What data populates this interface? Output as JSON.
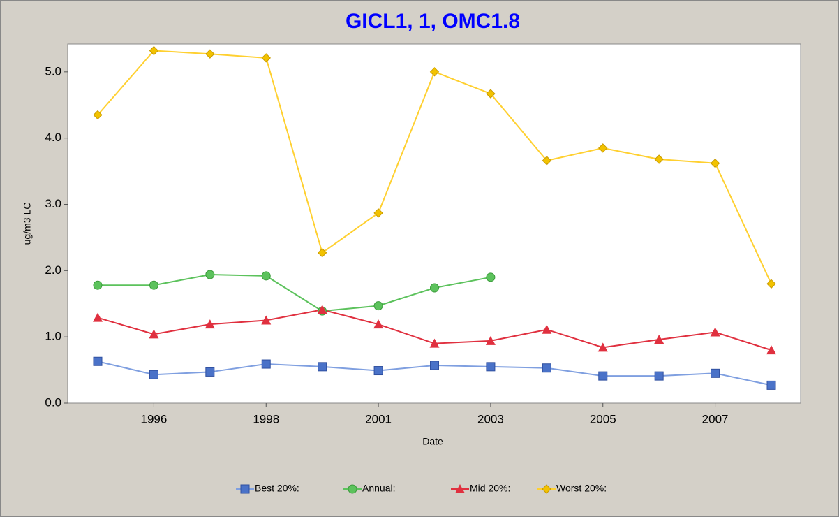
{
  "chart_data": {
    "type": "line",
    "title": "GICL1, 1, OMC1.8",
    "xlabel": "Date",
    "ylabel": "ug/m3 LC",
    "categories": [
      null,
      "1996",
      null,
      "1998",
      null,
      "2001",
      null,
      "2003",
      null,
      "2005",
      null,
      "2007",
      null
    ],
    "ylim": [
      0,
      5.42
    ],
    "yticks": [
      {
        "value": 0,
        "label": "0.0"
      },
      {
        "value": 1,
        "label": "1.0"
      },
      {
        "value": 2,
        "label": "2.0"
      },
      {
        "value": 3,
        "label": "3.0"
      },
      {
        "value": 4,
        "label": "4.0"
      },
      {
        "value": 5,
        "label": "5.0"
      }
    ],
    "series": [
      {
        "name": "Best 20%:",
        "color": "#4a72c8",
        "values": [
          0.63,
          0.43,
          0.47,
          0.59,
          0.55,
          0.49,
          0.57,
          0.55,
          0.53,
          0.41,
          0.41,
          0.45,
          0.27
        ]
      },
      {
        "name": "Annual:",
        "color": "#5cc25c",
        "values": [
          1.78,
          1.78,
          1.94,
          1.92,
          1.39,
          1.47,
          1.74,
          1.9,
          null,
          null,
          null,
          null,
          null
        ]
      },
      {
        "name": "Mid 20%:",
        "color": "#e0303f",
        "values": [
          1.29,
          1.04,
          1.19,
          1.25,
          1.41,
          1.19,
          0.9,
          0.94,
          1.11,
          0.84,
          0.96,
          1.07,
          0.8
        ]
      },
      {
        "name": "Worst 20%:",
        "color": "#f2c200",
        "values": [
          4.35,
          5.32,
          5.27,
          5.21,
          2.27,
          2.87,
          5.0,
          4.67,
          3.66,
          3.85,
          3.68,
          3.62,
          1.8
        ]
      }
    ]
  }
}
